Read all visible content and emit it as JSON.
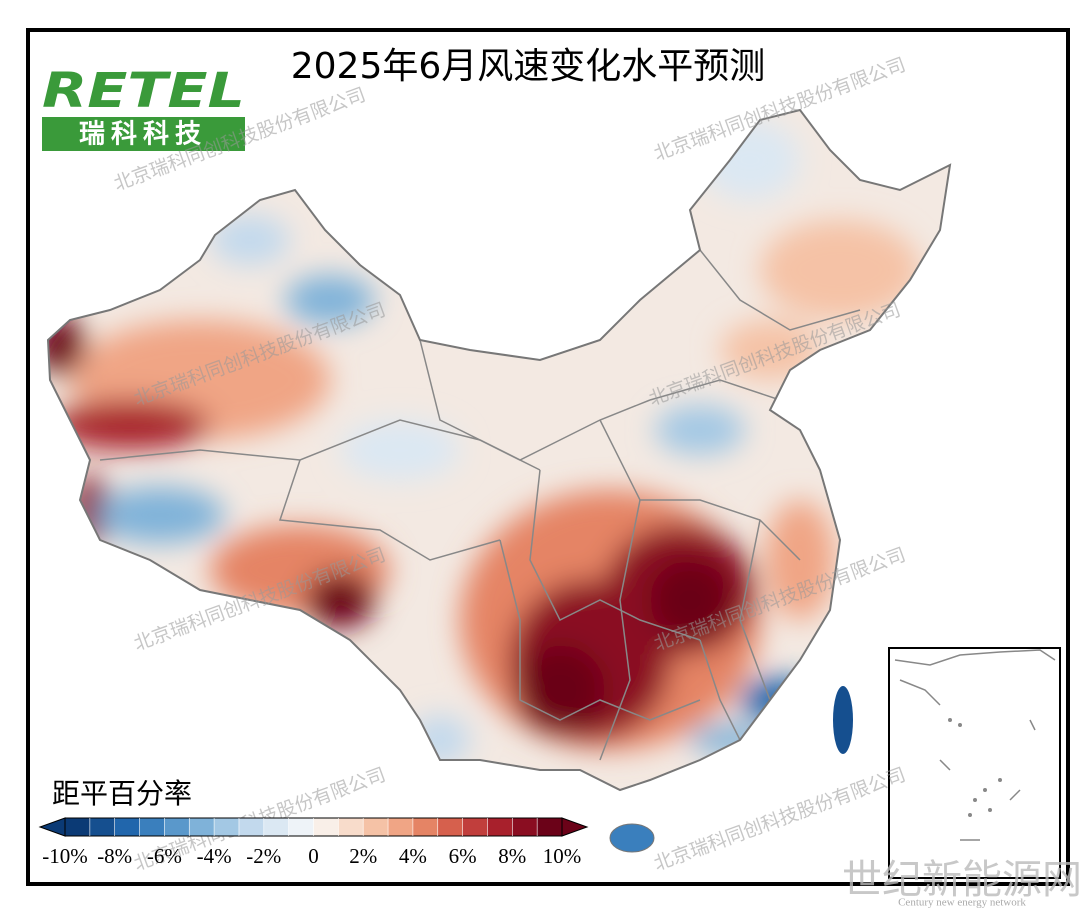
{
  "title": "2025年6月风速变化水平预测",
  "logo": {
    "latin": "RETEL",
    "chinese": "瑞科科技"
  },
  "watermark": "北京瑞科同创科技股份有限公司",
  "legend": {
    "title": "距平百分率",
    "lim": [
      -10,
      10
    ],
    "ticks": [
      {
        "value": -10,
        "label": "-10%"
      },
      {
        "value": -8,
        "label": "-8%"
      },
      {
        "value": -6,
        "label": "-6%"
      },
      {
        "value": -4,
        "label": "-4%"
      },
      {
        "value": -2,
        "label": "-2%"
      },
      0,
      {
        "value": 2,
        "label": "2%"
      },
      {
        "value": 4,
        "label": "4%"
      },
      {
        "value": 6,
        "label": "6%"
      },
      {
        "value": 8,
        "label": "8%"
      },
      {
        "value": 10,
        "label": "10%"
      }
    ],
    "colors": [
      "#0b3a75",
      "#154f8f",
      "#2166ac",
      "#3a7fbd",
      "#5a98cb",
      "#7fb2d9",
      "#a3c8e4",
      "#c2d9ed",
      "#dbe8f3",
      "#eef3f8",
      "#f9efe8",
      "#f8dccb",
      "#f5c2a6",
      "#f0a585",
      "#e58465",
      "#d6604d",
      "#c13e3c",
      "#a8202c",
      "#8a0d21",
      "#6b0218"
    ]
  },
  "source": {
    "name": "世纪新能源网",
    "subtitle": "Century new energy network"
  }
}
